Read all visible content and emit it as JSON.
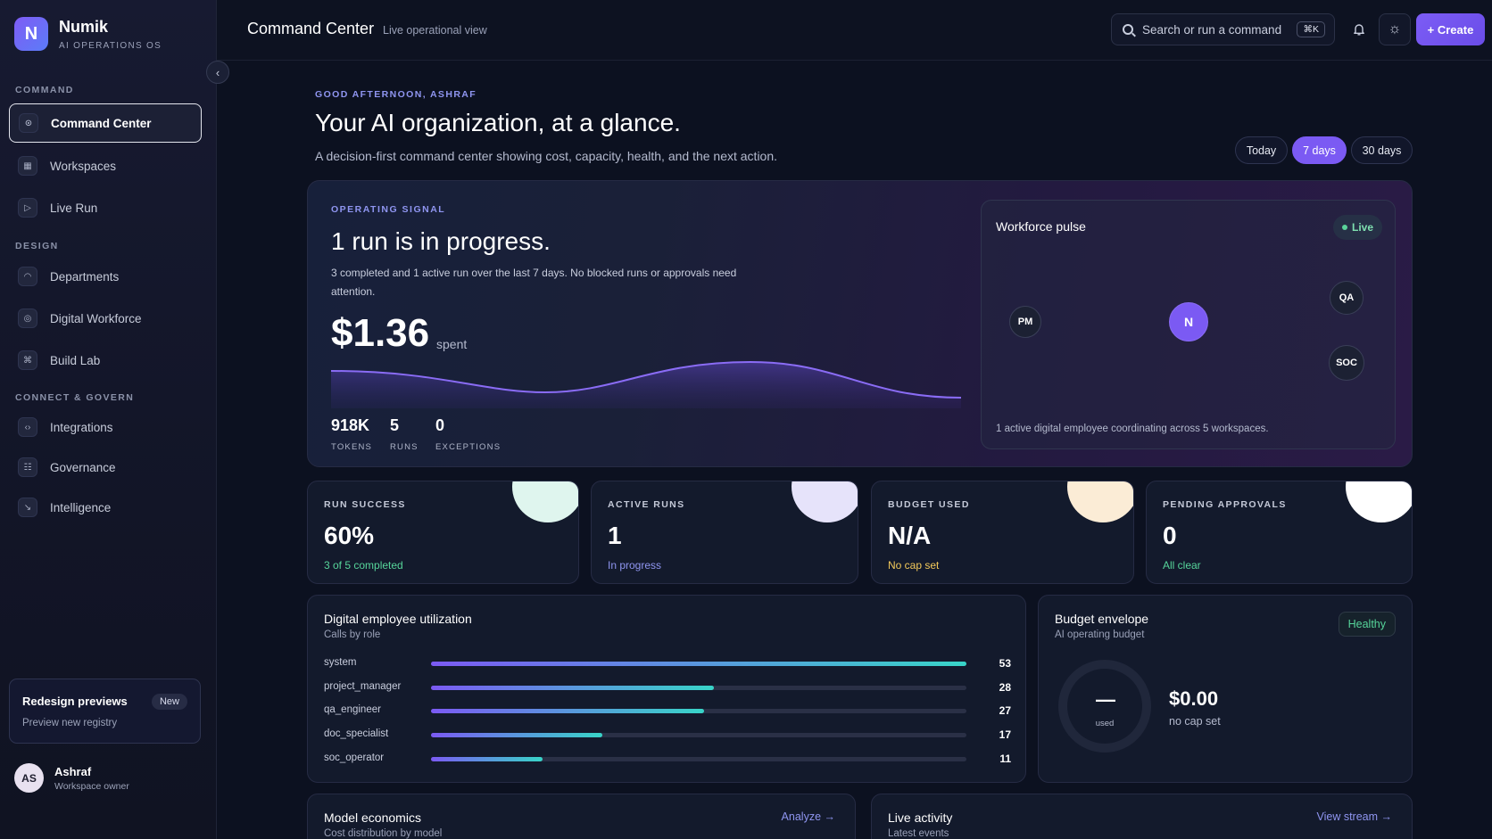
{
  "brand": {
    "logo_letter": "N",
    "name": "Numik",
    "subtitle": "AI OPERATIONS OS"
  },
  "sidebar": {
    "sections": [
      {
        "label": "COMMAND",
        "items": [
          {
            "label": "Command Center",
            "icon": "command-icon",
            "active": true
          },
          {
            "label": "Workspaces",
            "icon": "grid-icon"
          },
          {
            "label": "Live Run",
            "icon": "play-icon"
          }
        ]
      },
      {
        "label": "DESIGN",
        "items": [
          {
            "label": "Departments",
            "icon": "bell-icon"
          },
          {
            "label": "Digital Workforce",
            "icon": "bot-icon"
          },
          {
            "label": "Build Lab",
            "icon": "cmd-key-icon"
          }
        ]
      },
      {
        "label": "CONNECT & GOVERN",
        "items": [
          {
            "label": "Integrations",
            "icon": "code-icon"
          },
          {
            "label": "Governance",
            "icon": "users-icon"
          },
          {
            "label": "Intelligence",
            "icon": "trend-icon"
          }
        ]
      }
    ],
    "promo": {
      "title": "Redesign previews",
      "badge": "New",
      "subtitle": "Preview new registry"
    },
    "user": {
      "initials": "AS",
      "name": "Ashraf",
      "role": "Workspace owner"
    }
  },
  "topbar": {
    "title": "Command Center",
    "subtitle": "Live operational view",
    "search_placeholder": "Search or run a command",
    "search_shortcut": "⌘K",
    "create_label": "+ Create"
  },
  "hero": {
    "greeting": "GOOD AFTERNOON, ASHRAF",
    "title": "Your AI organization, at a glance.",
    "subtitle": "A decision-first command center showing cost, capacity, health, and the next action.",
    "ranges": [
      "Today",
      "7 days",
      "30 days"
    ],
    "active_range": "7 days"
  },
  "signal": {
    "label": "OPERATING SIGNAL",
    "title": "1 run is in progress.",
    "description": "3 completed and 1 active run over the last 7 days. No blocked runs or approvals need attention.",
    "amount": "$1.36",
    "amount_suffix": "spent",
    "stats": [
      {
        "value": "918K",
        "label": "TOKENS"
      },
      {
        "value": "5",
        "label": "RUNS"
      },
      {
        "value": "0",
        "label": "EXCEPTIONS"
      }
    ]
  },
  "pulse": {
    "title": "Workforce pulse",
    "live_label": "Live",
    "nodes": [
      "PM",
      "N",
      "QA",
      "SOC"
    ],
    "footer": "1 active digital employee coordinating across 5 workspaces."
  },
  "kpis": [
    {
      "label": "RUN SUCCESS",
      "value": "60%",
      "sub": "3 of 5 completed",
      "sub_color": "#56d49a",
      "corner_color": "#dff5ee"
    },
    {
      "label": "ACTIVE RUNS",
      "value": "1",
      "sub": "In progress",
      "sub_color": "#8f95f0",
      "corner_color": "#e6e3fa"
    },
    {
      "label": "BUDGET USED",
      "value": "N/A",
      "sub": "No cap set",
      "sub_color": "#f2c85a",
      "corner_color": "#fbecd6"
    },
    {
      "label": "PENDING APPROVALS",
      "value": "0",
      "sub": "All clear",
      "sub_color": "#56d49a",
      "corner_color": "#ffffff"
    }
  ],
  "utilization": {
    "title": "Digital employee utilization",
    "subtitle": "Calls by role",
    "max": 53,
    "rows": [
      {
        "name": "system",
        "value": 53
      },
      {
        "name": "project_manager",
        "value": 28
      },
      {
        "name": "qa_engineer",
        "value": 27
      },
      {
        "name": "doc_specialist",
        "value": 17
      },
      {
        "name": "soc_operator",
        "value": 11
      }
    ]
  },
  "budget": {
    "title": "Budget envelope",
    "subtitle": "AI operating budget",
    "status": "Healthy",
    "ring_value": "—",
    "ring_label": "used",
    "amount": "$0.00",
    "cap_text": "no cap set"
  },
  "bottom_cards": [
    {
      "title": "Model economics",
      "subtitle": "Cost distribution by model",
      "link": "Analyze →"
    },
    {
      "title": "Live activity",
      "subtitle": "Latest events",
      "link": "View stream →"
    }
  ]
}
